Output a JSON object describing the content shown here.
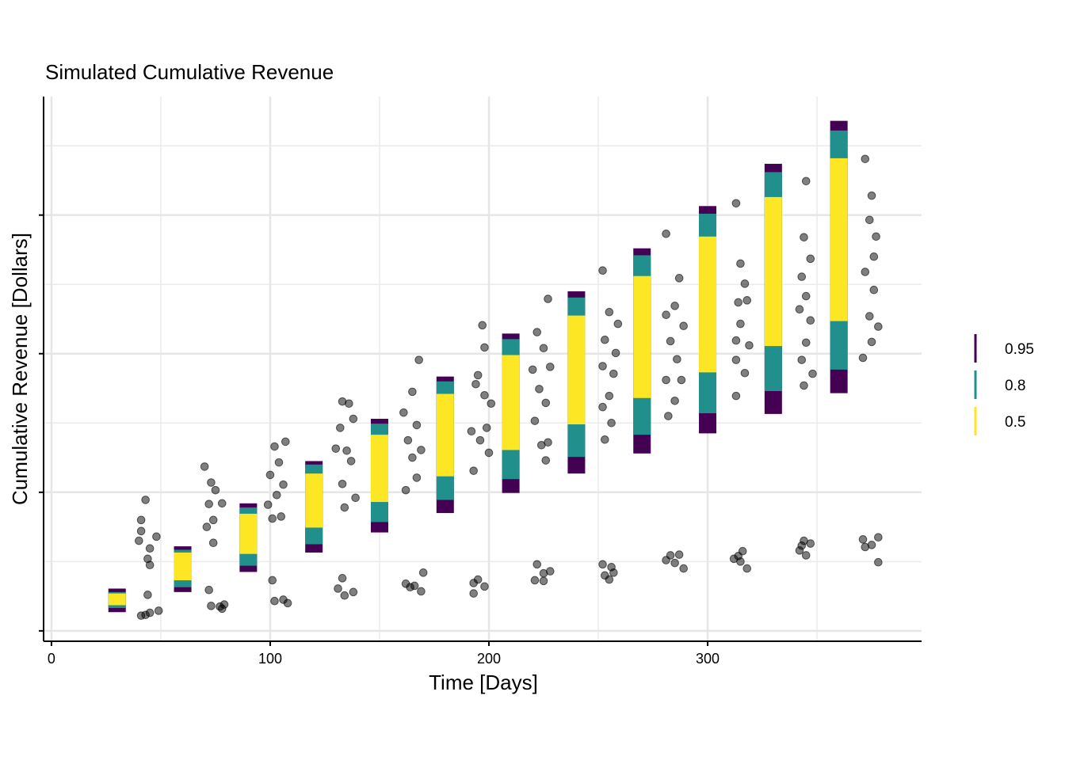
{
  "chart_data": {
    "type": "interval",
    "title": "Simulated Cumulative Revenue",
    "x_label": "Time [Days]",
    "y_label": "Cumulative Revenue [Dollars]",
    "xlim": [
      -3.6,
      397.8
    ],
    "ylim": [
      -1.5,
      77.1
    ],
    "xticks": [
      0,
      100,
      200,
      300
    ],
    "xminor": [
      50,
      150,
      250,
      350
    ],
    "yticks": [
      0,
      20,
      40,
      60
    ],
    "yminor": [
      10,
      30,
      50,
      70
    ],
    "grid": true,
    "legend": "right",
    "intervals": {
      "x": [
        30,
        60,
        90,
        120,
        150,
        180,
        210,
        240,
        270,
        300,
        330,
        360
      ],
      "levels": [
        {
          "name": "0.95",
          "color": "#440154",
          "low": [
            2.7,
            5.6,
            8.5,
            11.3,
            14.2,
            17.0,
            19.9,
            22.7,
            25.6,
            28.5,
            31.3,
            34.3
          ],
          "high": [
            6.1,
            12.2,
            18.4,
            24.5,
            30.6,
            36.7,
            42.9,
            49.0,
            55.2,
            61.3,
            67.4,
            73.6
          ]
        },
        {
          "name": "0.8",
          "color": "#21908c",
          "low": [
            3.3,
            6.3,
            9.4,
            12.5,
            15.7,
            18.9,
            21.9,
            25.1,
            28.3,
            31.4,
            34.6,
            37.7
          ],
          "high": [
            5.6,
            11.7,
            17.8,
            24.0,
            29.9,
            36.0,
            42.1,
            48.1,
            54.2,
            60.2,
            66.2,
            72.2
          ]
        },
        {
          "name": "0.5",
          "color": "#fde725",
          "low": [
            3.7,
            7.3,
            11.1,
            14.9,
            18.6,
            22.3,
            26.1,
            29.8,
            33.6,
            37.3,
            41.1,
            44.7
          ],
          "high": [
            5.4,
            11.3,
            16.9,
            22.7,
            28.3,
            34.2,
            39.8,
            45.5,
            51.2,
            56.9,
            62.6,
            68.2
          ]
        }
      ]
    },
    "points": {
      "color": "#000000",
      "x": [
        41,
        43,
        45,
        49,
        44,
        40,
        43,
        41,
        45,
        48,
        44,
        41,
        45,
        70,
        73,
        75,
        72,
        78,
        74,
        71,
        74,
        72,
        73,
        77,
        79,
        78,
        102,
        107,
        104,
        100,
        106,
        103,
        99,
        105,
        101,
        102,
        106,
        108,
        101,
        133,
        136,
        132,
        138,
        130,
        135,
        137,
        133,
        134,
        139,
        133,
        134,
        138,
        131,
        168,
        165,
        161,
        167,
        163,
        169,
        165,
        167,
        162,
        164,
        166,
        169,
        170,
        162,
        197,
        198,
        195,
        194,
        198,
        201,
        199,
        192,
        196,
        200,
        193,
        193,
        195,
        198,
        193,
        227,
        222,
        225,
        220,
        228,
        223,
        226,
        221,
        224,
        227,
        226,
        222,
        225,
        228,
        221,
        225,
        252,
        255,
        259,
        253,
        258,
        252,
        257,
        255,
        252,
        256,
        253,
        253,
        256,
        257,
        255,
        252,
        281,
        287,
        285,
        281,
        289,
        283,
        286,
        288,
        281,
        285,
        282,
        283,
        285,
        287,
        289,
        281,
        313,
        315,
        317,
        314,
        318,
        315,
        313,
        319,
        313,
        317,
        313,
        314,
        316,
        315,
        318,
        312,
        345,
        344,
        347,
        343,
        345,
        342,
        347,
        345,
        343,
        348,
        344,
        343,
        347,
        345,
        344,
        342,
        372,
        375,
        374,
        377,
        376,
        372,
        376,
        374,
        378,
        375,
        371,
        372,
        375,
        378,
        371,
        378
      ],
      "y": [
        2.2,
        2.3,
        2.6,
        2.9,
        5.2,
        13.0,
        18.9,
        16.0,
        11.9,
        13.6,
        10.4,
        14.4,
        9.5,
        23.7,
        21.4,
        20.3,
        18.3,
        18.4,
        16.0,
        15.0,
        12.7,
        5.9,
        3.6,
        3.5,
        3.8,
        3.2,
        26.6,
        27.3,
        24.3,
        22.5,
        21.1,
        19.6,
        18.2,
        16.5,
        16.2,
        4.3,
        4.5,
        4.0,
        7.3,
        33.1,
        32.8,
        29.3,
        30.6,
        26.3,
        26.0,
        24.5,
        21.2,
        17.8,
        19.2,
        7.6,
        5.1,
        5.6,
        6.1,
        39.1,
        34.5,
        31.5,
        29.7,
        27.5,
        26.1,
        25.0,
        22.1,
        20.3,
        6.3,
        6.5,
        5.7,
        8.4,
        6.8,
        44.1,
        40.9,
        36.9,
        35.6,
        34.0,
        32.8,
        29.3,
        28.8,
        27.5,
        25.7,
        23.1,
        6.9,
        7.4,
        6.4,
        5.4,
        47.9,
        43.1,
        40.8,
        37.7,
        38.1,
        34.9,
        32.9,
        30.3,
        26.8,
        27.2,
        24.6,
        9.6,
        8.3,
        8.6,
        7.3,
        7.2,
        52.0,
        46.0,
        44.3,
        42.0,
        40.1,
        38.2,
        37.1,
        33.9,
        32.3,
        30.0,
        27.6,
        8.0,
        9.2,
        8.4,
        7.4,
        9.6,
        57.3,
        50.9,
        46.9,
        45.6,
        44.0,
        41.8,
        39.2,
        36.2,
        36.2,
        33.2,
        31.0,
        10.9,
        9.8,
        11.0,
        9.0,
        10.2,
        61.7,
        53.0,
        50.1,
        47.4,
        47.7,
        44.3,
        41.9,
        41.2,
        39.1,
        37.2,
        33.9,
        10.8,
        11.5,
        10.0,
        9.0,
        10.4,
        64.9,
        56.8,
        53.7,
        51.1,
        48.3,
        46.4,
        44.8,
        41.6,
        39.1,
        37.1,
        35.4,
        12.3,
        12.6,
        10.9,
        13.0,
        11.6,
        68.1,
        62.8,
        59.3,
        56.9,
        54.0,
        51.8,
        49.2,
        45.4,
        43.9,
        41.7,
        39.4,
        12.1,
        12.4,
        13.5,
        13.2,
        9.9
      ]
    }
  }
}
